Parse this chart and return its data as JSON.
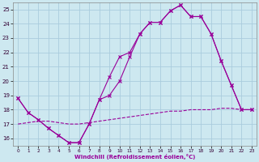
{
  "xlabel": "Windchill (Refroidissement éolien,°C)",
  "background_color": "#cde8f0",
  "grid_color": "#aaccdd",
  "line_color": "#990099",
  "xlim": [
    -0.5,
    23.5
  ],
  "ylim": [
    15.5,
    25.5
  ],
  "yticks": [
    16,
    17,
    18,
    19,
    20,
    21,
    22,
    23,
    24,
    25
  ],
  "xticks": [
    0,
    1,
    2,
    3,
    4,
    5,
    6,
    7,
    8,
    9,
    10,
    11,
    12,
    13,
    14,
    15,
    16,
    17,
    18,
    19,
    20,
    21,
    22,
    23
  ],
  "line1_x": [
    0,
    1,
    2,
    3,
    4,
    5,
    6,
    7,
    8,
    9,
    10,
    11,
    12,
    13,
    14,
    15,
    16,
    17,
    18,
    19,
    20,
    21,
    22,
    23
  ],
  "line1_y": [
    18.8,
    17.8,
    17.3,
    16.7,
    16.2,
    15.7,
    15.7,
    17.0,
    18.7,
    20.3,
    21.7,
    22.0,
    23.3,
    24.1,
    24.1,
    24.9,
    25.3,
    24.5,
    24.5,
    23.3,
    21.4,
    19.7,
    18.0,
    18.0
  ],
  "line2_x": [
    0,
    1,
    2,
    3,
    4,
    5,
    6,
    7,
    8,
    9,
    10,
    11,
    12,
    13,
    14,
    15,
    16,
    17,
    18,
    19,
    20,
    21,
    22,
    23
  ],
  "line2_y": [
    18.8,
    17.8,
    17.3,
    16.7,
    16.2,
    15.7,
    15.7,
    17.0,
    18.7,
    19.0,
    20.0,
    21.7,
    23.3,
    24.1,
    24.1,
    24.9,
    25.3,
    24.5,
    24.5,
    23.3,
    21.4,
    19.7,
    18.0,
    18.0
  ],
  "line3_x": [
    0,
    1,
    2,
    3,
    4,
    5,
    6,
    7,
    8,
    9,
    10,
    11,
    12,
    13,
    14,
    15,
    16,
    17,
    18,
    19,
    20,
    21,
    22,
    23
  ],
  "line3_y": [
    17.0,
    17.1,
    17.2,
    17.2,
    17.1,
    17.0,
    17.0,
    17.1,
    17.2,
    17.3,
    17.4,
    17.5,
    17.6,
    17.7,
    17.8,
    17.9,
    17.9,
    18.0,
    18.0,
    18.0,
    18.1,
    18.1,
    18.0,
    18.0
  ]
}
